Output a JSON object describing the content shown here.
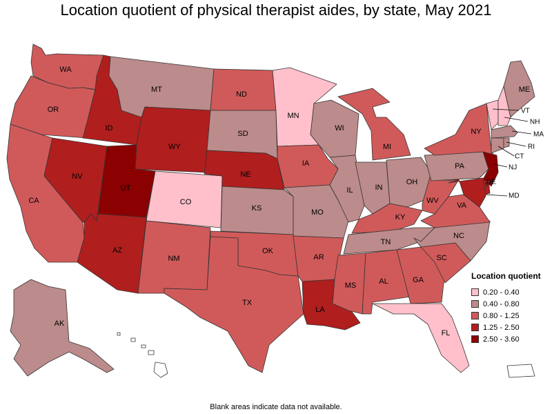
{
  "title": "Location quotient of physical therapist aides, by state, May 2021",
  "note": "Blank areas indicate data not available.",
  "legend": {
    "title": "Location quotient",
    "items": [
      {
        "label": "0.20 - 0.40",
        "color": "#ffc0cb"
      },
      {
        "label": "0.40 - 0.80",
        "color": "#bc8b8b"
      },
      {
        "label": "0.80 - 1.25",
        "color": "#d05a5a"
      },
      {
        "label": "1.25 - 2.50",
        "color": "#b01e1e"
      },
      {
        "label": "2.50 - 3.60",
        "color": "#8b0000"
      }
    ]
  },
  "states": [
    {
      "code": "WA",
      "class": 2
    },
    {
      "code": "OR",
      "class": 2
    },
    {
      "code": "CA",
      "class": 2
    },
    {
      "code": "ID",
      "class": 3
    },
    {
      "code": "NV",
      "class": 3
    },
    {
      "code": "UT",
      "class": 4
    },
    {
      "code": "AZ",
      "class": 3
    },
    {
      "code": "MT",
      "class": 1
    },
    {
      "code": "WY",
      "class": 3
    },
    {
      "code": "CO",
      "class": 0
    },
    {
      "code": "NM",
      "class": 2
    },
    {
      "code": "ND",
      "class": 2
    },
    {
      "code": "SD",
      "class": 1
    },
    {
      "code": "NE",
      "class": 3
    },
    {
      "code": "KS",
      "class": 1
    },
    {
      "code": "OK",
      "class": 2
    },
    {
      "code": "TX",
      "class": 2
    },
    {
      "code": "MN",
      "class": 0
    },
    {
      "code": "IA",
      "class": 2
    },
    {
      "code": "MO",
      "class": 1
    },
    {
      "code": "AR",
      "class": 2
    },
    {
      "code": "LA",
      "class": 3
    },
    {
      "code": "WI",
      "class": 1
    },
    {
      "code": "IL",
      "class": 1
    },
    {
      "code": "MI",
      "class": 2
    },
    {
      "code": "IN",
      "class": 1
    },
    {
      "code": "OH",
      "class": 1
    },
    {
      "code": "KY",
      "class": 2
    },
    {
      "code": "TN",
      "class": 1
    },
    {
      "code": "MS",
      "class": 2
    },
    {
      "code": "AL",
      "class": 2
    },
    {
      "code": "GA",
      "class": 2
    },
    {
      "code": "FL",
      "class": 0
    },
    {
      "code": "SC",
      "class": 2
    },
    {
      "code": "NC",
      "class": 1
    },
    {
      "code": "VA",
      "class": 2
    },
    {
      "code": "WV",
      "class": 2
    },
    {
      "code": "PA",
      "class": 1
    },
    {
      "code": "NY",
      "class": 2
    },
    {
      "code": "VT",
      "class": 0
    },
    {
      "code": "NH",
      "class": 0
    },
    {
      "code": "ME",
      "class": 1
    },
    {
      "code": "MA",
      "class": 1
    },
    {
      "code": "RI",
      "class": 1
    },
    {
      "code": "CT",
      "class": 1
    },
    {
      "code": "NJ",
      "class": 4
    },
    {
      "code": "DE",
      "class": 3
    },
    {
      "code": "MD",
      "class": 3
    },
    {
      "code": "AK",
      "class": 1
    },
    {
      "code": "HI",
      "class": -1
    },
    {
      "code": "PR",
      "class": -1
    }
  ]
}
